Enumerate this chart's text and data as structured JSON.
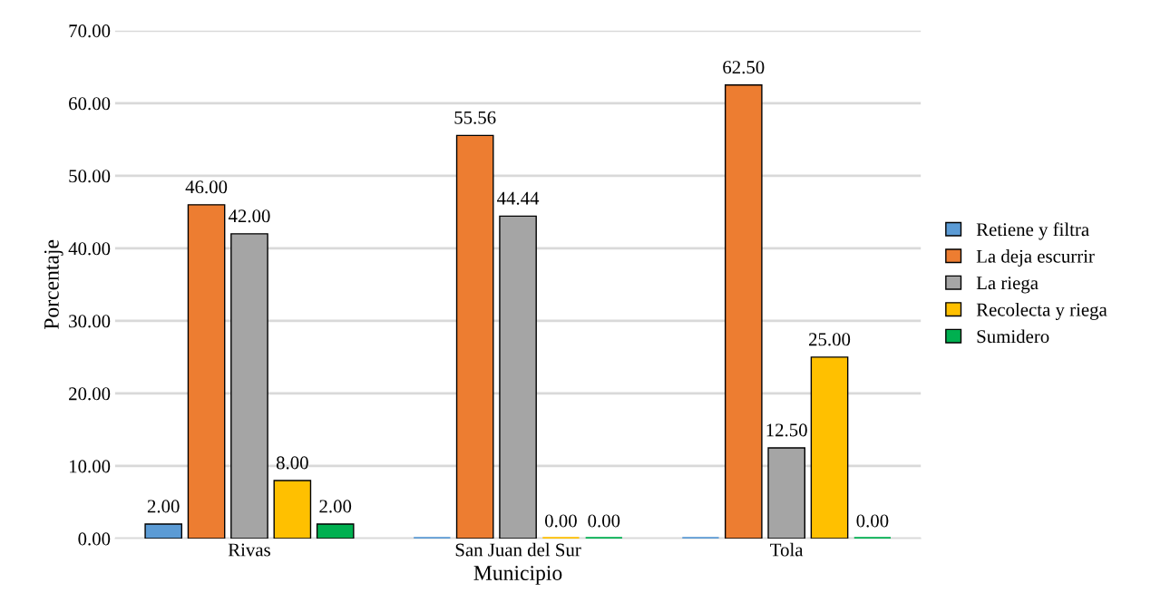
{
  "chart_data": {
    "type": "bar",
    "xlabel": "Municipio",
    "ylabel": "Porcentaje",
    "categories": [
      "Rivas",
      "San Juan del Sur",
      "Tola"
    ],
    "series": [
      {
        "name": "Retiene y filtra",
        "color": "#5b9bd5",
        "values": [
          2.0,
          0.0,
          0.0
        ],
        "value_labels": [
          "2.00",
          null,
          null
        ]
      },
      {
        "name": "La deja escurrir",
        "color": "#ed7d31",
        "values": [
          46.0,
          55.56,
          62.5
        ],
        "value_labels": [
          "46.00",
          "55.56",
          "62.50"
        ]
      },
      {
        "name": "La riega",
        "color": "#a5a5a5",
        "values": [
          42.0,
          44.44,
          12.5
        ],
        "value_labels": [
          "42.00",
          "44.44",
          "12.50"
        ]
      },
      {
        "name": "Recolecta y riega",
        "color": "#ffc000",
        "values": [
          8.0,
          0.0,
          25.0
        ],
        "value_labels": [
          "8.00",
          "0.00",
          "25.00"
        ]
      },
      {
        "name": "Sumidero",
        "color": "#00b050",
        "values": [
          2.0,
          0.0,
          0.0
        ],
        "value_labels": [
          "2.00",
          "0.00",
          "0.00"
        ]
      }
    ],
    "ylim": [
      0,
      70
    ],
    "yticks": [
      {
        "value": 0,
        "label": "0.00"
      },
      {
        "value": 10,
        "label": "10.00"
      },
      {
        "value": 20,
        "label": "20.00"
      },
      {
        "value": 30,
        "label": "30.00"
      },
      {
        "value": 40,
        "label": "40.00"
      },
      {
        "value": 50,
        "label": "50.00"
      },
      {
        "value": 60,
        "label": "60.00"
      },
      {
        "value": 70,
        "label": "70.00"
      }
    ],
    "grid": "y",
    "legend": "right"
  }
}
